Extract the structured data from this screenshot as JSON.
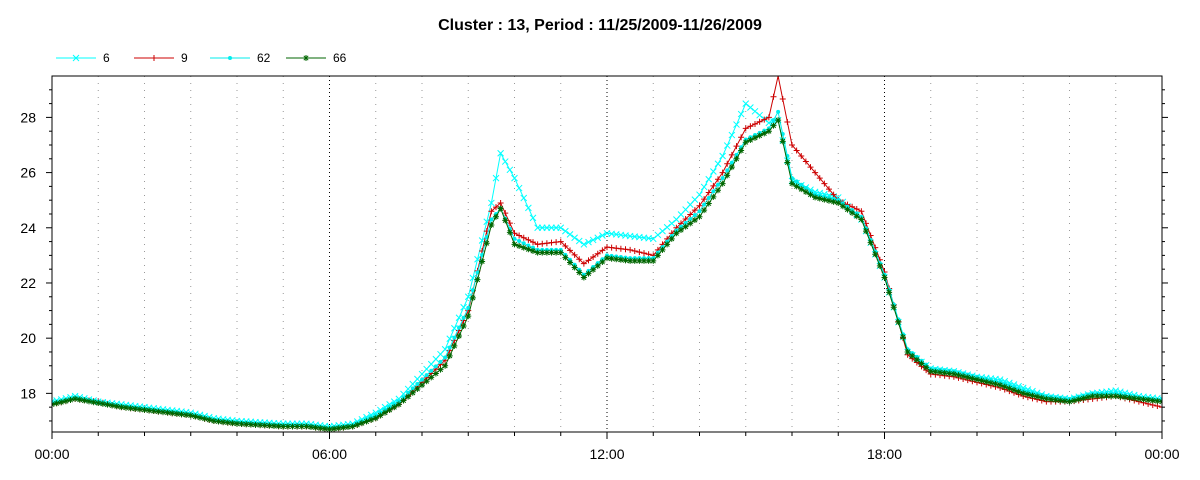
{
  "chart_data": {
    "type": "line",
    "title": "Cluster : 13, Period : 11/25/2009-11/26/2009",
    "xlabel": "",
    "ylabel": "",
    "x_ticks": [
      {
        "hour": 0,
        "label": "00:00"
      },
      {
        "hour": 6,
        "label": "06:00"
      },
      {
        "hour": 12,
        "label": "12:00"
      },
      {
        "hour": 18,
        "label": "18:00"
      },
      {
        "hour": 24,
        "label": "00:00"
      }
    ],
    "x_unit": "hours",
    "xlim": [
      0,
      24
    ],
    "ylim": [
      16.6,
      29.5
    ],
    "y_ticks": [
      18,
      20,
      22,
      24,
      26,
      28
    ],
    "grid": {
      "vertical_major": true,
      "vertical_minor": true,
      "horizontal": false
    },
    "legend_position": "top-left",
    "x": [
      0,
      0.5,
      1,
      1.5,
      2,
      2.5,
      3,
      3.5,
      4,
      4.5,
      5,
      5.5,
      6,
      6.5,
      7,
      7.5,
      8,
      8.5,
      9,
      9.5,
      9.7,
      10,
      10.5,
      11,
      11.5,
      12,
      12.5,
      13,
      13.5,
      14,
      14.5,
      15,
      15.5,
      15.7,
      16,
      16.5,
      17,
      17.5,
      18,
      18.5,
      19,
      19.5,
      20,
      20.5,
      21,
      21.5,
      22,
      22.5,
      23,
      23.5,
      24
    ],
    "series": [
      {
        "name": "6",
        "color": "#00ffff",
        "marker": "x",
        "values": [
          17.7,
          17.9,
          17.7,
          17.6,
          17.5,
          17.4,
          17.3,
          17.1,
          17.0,
          16.95,
          16.9,
          16.9,
          16.8,
          16.9,
          17.3,
          17.8,
          18.7,
          19.6,
          21.5,
          24.9,
          26.7,
          25.8,
          24.0,
          24.0,
          23.4,
          23.8,
          23.7,
          23.6,
          24.3,
          25.2,
          26.6,
          28.5,
          27.8,
          27.9,
          25.7,
          25.3,
          25.1,
          24.3,
          22.2,
          19.5,
          18.9,
          18.8,
          18.6,
          18.5,
          18.2,
          17.9,
          17.8,
          18.0,
          18.1,
          17.9,
          17.8
        ]
      },
      {
        "name": "9",
        "color": "#cc0000",
        "marker": "+",
        "values": [
          17.6,
          17.8,
          17.7,
          17.5,
          17.4,
          17.3,
          17.2,
          17.0,
          16.9,
          16.85,
          16.8,
          16.8,
          16.7,
          16.8,
          17.1,
          17.6,
          18.4,
          19.2,
          21.0,
          24.6,
          24.9,
          23.8,
          23.4,
          23.5,
          22.7,
          23.3,
          23.2,
          23.0,
          24.0,
          24.8,
          26.0,
          27.6,
          28.0,
          29.5,
          27.0,
          26.0,
          25.0,
          24.6,
          22.4,
          19.4,
          18.7,
          18.6,
          18.4,
          18.2,
          17.9,
          17.7,
          17.7,
          17.8,
          17.9,
          17.7,
          17.5
        ]
      },
      {
        "name": "62",
        "color": "#00eeee",
        "marker": "dot",
        "values": [
          17.65,
          17.85,
          17.7,
          17.55,
          17.45,
          17.35,
          17.25,
          17.05,
          16.95,
          16.9,
          16.85,
          16.85,
          16.75,
          16.85,
          17.2,
          17.7,
          18.5,
          19.3,
          21.1,
          24.3,
          24.7,
          23.6,
          23.2,
          23.2,
          22.3,
          23.0,
          22.9,
          22.9,
          23.9,
          24.6,
          25.8,
          27.2,
          27.6,
          28.2,
          25.8,
          25.2,
          25.0,
          24.4,
          22.3,
          19.6,
          18.9,
          18.8,
          18.6,
          18.4,
          18.1,
          17.9,
          17.8,
          18.0,
          18.0,
          17.85,
          17.75
        ]
      },
      {
        "name": "66",
        "color": "#006600",
        "marker": "*",
        "values": [
          17.6,
          17.8,
          17.65,
          17.5,
          17.4,
          17.3,
          17.2,
          17.0,
          16.9,
          16.85,
          16.8,
          16.8,
          16.7,
          16.8,
          17.1,
          17.6,
          18.3,
          19.0,
          20.8,
          24.1,
          24.7,
          23.4,
          23.1,
          23.1,
          22.2,
          22.9,
          22.8,
          22.8,
          23.8,
          24.4,
          25.6,
          27.1,
          27.5,
          27.9,
          25.6,
          25.1,
          24.9,
          24.3,
          22.2,
          19.5,
          18.8,
          18.7,
          18.5,
          18.3,
          18.0,
          17.8,
          17.7,
          17.9,
          17.9,
          17.8,
          17.7
        ]
      }
    ]
  }
}
